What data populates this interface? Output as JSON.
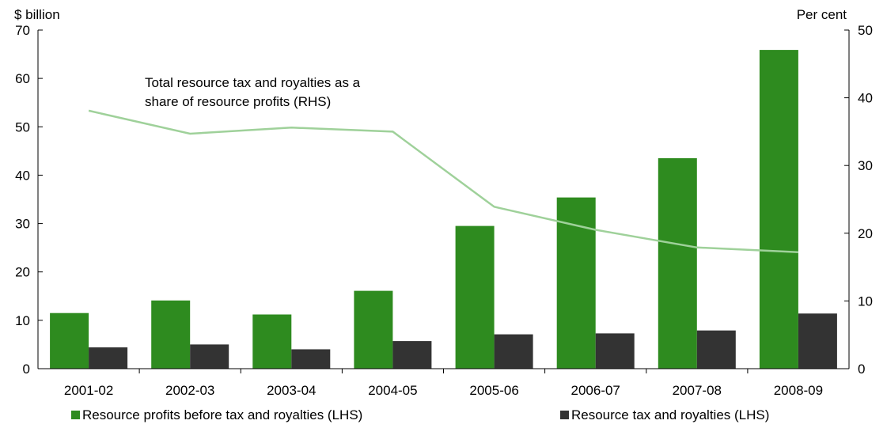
{
  "chart_data": {
    "type": "bar",
    "categories": [
      "2001-02",
      "2002-03",
      "2003-04",
      "2004-05",
      "2005-06",
      "2006-07",
      "2007-08",
      "2008-09"
    ],
    "series": [
      {
        "name": "Resource profits before tax and royalties (LHS)",
        "axis": "left",
        "type": "bar",
        "color": "#2e8b1f",
        "values": [
          11.5,
          14.1,
          11.2,
          16.1,
          29.5,
          35.4,
          43.5,
          65.9
        ]
      },
      {
        "name": "Resource tax and royalties (LHS)",
        "axis": "left",
        "type": "bar",
        "color": "#333333",
        "values": [
          4.4,
          5.0,
          4.0,
          5.7,
          7.1,
          7.3,
          7.9,
          11.4
        ]
      },
      {
        "name": "Total resource tax and royalties as a share of resource profits (RHS)",
        "axis": "right",
        "type": "line",
        "color": "#9fd19a",
        "values": [
          38.1,
          34.7,
          35.6,
          35.0,
          23.9,
          20.5,
          17.9,
          17.2
        ]
      }
    ],
    "left_axis": {
      "label": "$ billion",
      "ylim": [
        0,
        70
      ],
      "ticks": [
        0,
        10,
        20,
        30,
        40,
        50,
        60,
        70
      ]
    },
    "right_axis": {
      "label": "Per cent",
      "ylim": [
        0,
        50
      ],
      "ticks": [
        0,
        10,
        20,
        30,
        40,
        50
      ]
    },
    "annotation": {
      "lines": [
        "Total resource tax and royalties as a",
        "share of resource profits (RHS)"
      ]
    },
    "legend": {
      "placement": "bottom",
      "entries": [
        "Resource profits before tax and royalties (LHS)",
        "Resource tax and royalties (LHS)"
      ]
    },
    "grid": false
  }
}
